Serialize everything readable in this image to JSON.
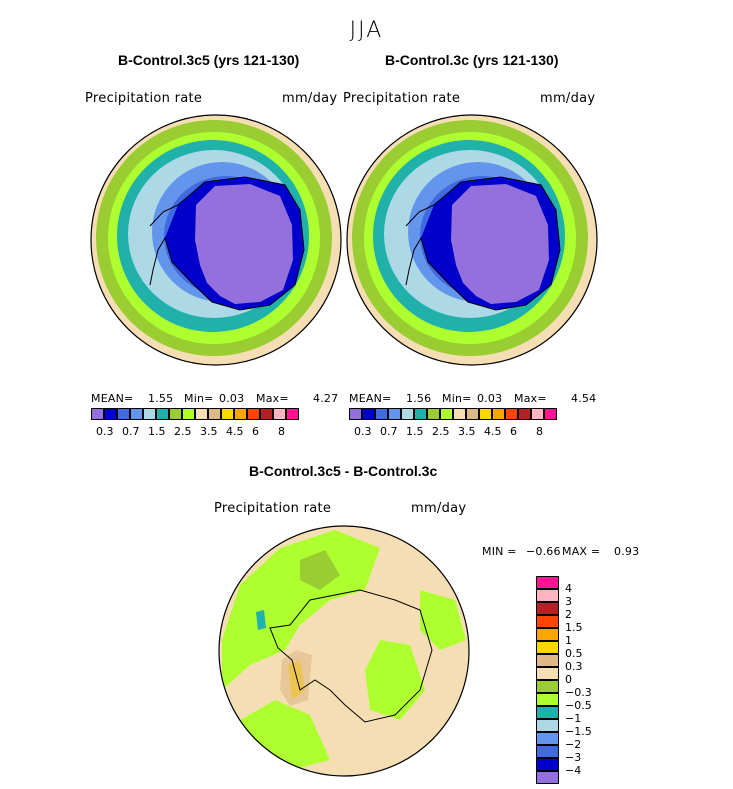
{
  "figure": {
    "season": "JJA",
    "variable": "Precipitation rate",
    "units": "mm/day"
  },
  "panels": [
    {
      "title": "B-Control.3c5 (yrs 121-130)",
      "stats": {
        "mean_label": "MEAN=",
        "mean": "1.55",
        "min_label": "Min=",
        "min": "0.03",
        "max_label": "Max=",
        "max": "4.27"
      }
    },
    {
      "title": "B-Control.3c (yrs 121-130)",
      "stats": {
        "mean_label": "MEAN=",
        "mean": "1.56",
        "min_label": "Min=",
        "min": "0.03",
        "max_label": "Max=",
        "max": "4.54"
      }
    }
  ],
  "diff_panel": {
    "title": "B-Control.3c5 - B-Control.3c",
    "min_label": "MIN =",
    "min": "−0.66",
    "max_label": "MAX =",
    "max": "0.93"
  },
  "colorbar": {
    "colors": [
      "#9370db",
      "#0000cd",
      "#4169e1",
      "#6495ed",
      "#add8e6",
      "#20b2aa",
      "#9acd32",
      "#adff2f",
      "#f5deb3",
      "#deb887",
      "#ffd700",
      "#ffa500",
      "#ff4500",
      "#b22222",
      "#ffb6c1",
      "#ff1493"
    ],
    "tick_labels": [
      "0.3",
      "0.7",
      "1.5",
      "2.5",
      "3.5",
      "4.5",
      "6",
      "8"
    ]
  },
  "diff_colorbar": {
    "colors": [
      "#ff1493",
      "#ffb6c1",
      "#b22222",
      "#ff4500",
      "#ffa500",
      "#ffd700",
      "#deb887",
      "#f5deb3",
      "#9acd32",
      "#adff2f",
      "#20b2aa",
      "#add8e6",
      "#6495ed",
      "#4169e1",
      "#0000cd",
      "#9370db"
    ],
    "labels": [
      "4",
      "3",
      "2",
      "1.5",
      "1",
      "0.5",
      "0.3",
      "0",
      "−0.3",
      "−0.5",
      "−1",
      "−1.5",
      "−2",
      "−3",
      "−4"
    ]
  }
}
